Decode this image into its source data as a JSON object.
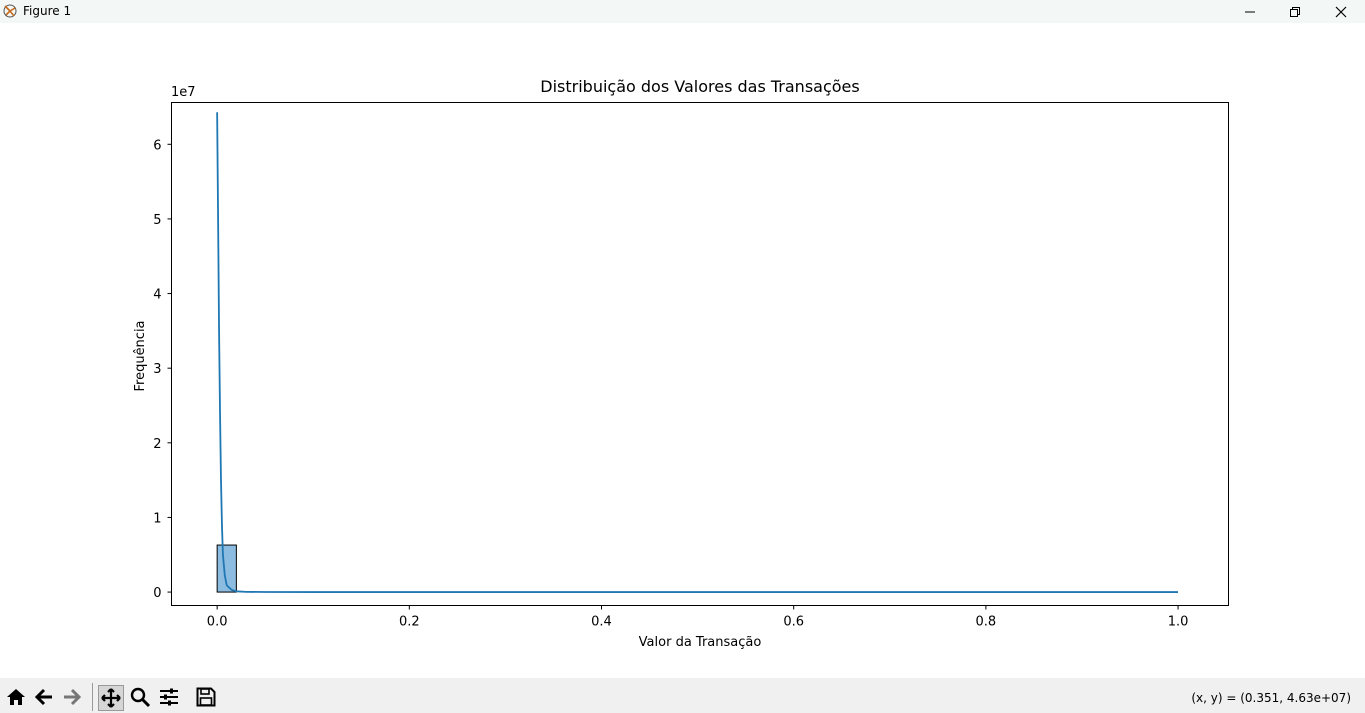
{
  "window": {
    "title": "Figure 1"
  },
  "toolbar": {
    "tools": [
      "home-icon",
      "back-icon",
      "forward-icon",
      "pan-icon",
      "zoom-icon",
      "configure-icon",
      "save-icon"
    ],
    "coords_text": "(x, y) = (0.351, 4.63e+07)"
  },
  "chart_data": {
    "type": "bar",
    "title": "Distribuição dos Valores das Transações",
    "xlabel": "Valor da Transação",
    "ylabel": "Frequência",
    "y_offset_text": "1e7",
    "xlim": [
      -0.0475,
      1.0525
    ],
    "ylim": [
      -1800000,
      65600000
    ],
    "x_ticks": [
      0.0,
      0.2,
      0.4,
      0.6,
      0.8,
      1.0
    ],
    "x_tick_labels": [
      "0.0",
      "0.2",
      "0.4",
      "0.6",
      "0.8",
      "1.0"
    ],
    "y_ticks": [
      0,
      10000000,
      20000000,
      30000000,
      40000000,
      50000000,
      60000000
    ],
    "y_tick_labels": [
      "0",
      "1",
      "2",
      "3",
      "4",
      "5",
      "6"
    ],
    "bins": {
      "edges": [
        0.0,
        0.02
      ],
      "counts": [
        6300000
      ]
    },
    "kde": {
      "x": [
        0.0,
        0.001,
        0.002,
        0.003,
        0.004,
        0.005,
        0.006,
        0.008,
        0.01,
        0.015,
        0.02,
        0.03,
        0.05,
        0.1,
        0.3,
        0.6,
        1.0
      ],
      "y": [
        64300000,
        50000000,
        35000000,
        24000000,
        15000000,
        9000000,
        5000000,
        2200000,
        900000,
        300000,
        100000,
        30000,
        8000,
        2000,
        500,
        200,
        100
      ]
    },
    "colors": {
      "line": "#1f77b4",
      "bar_fill": "#8cbde0",
      "bar_edge": "#000000"
    },
    "grid": false
  }
}
